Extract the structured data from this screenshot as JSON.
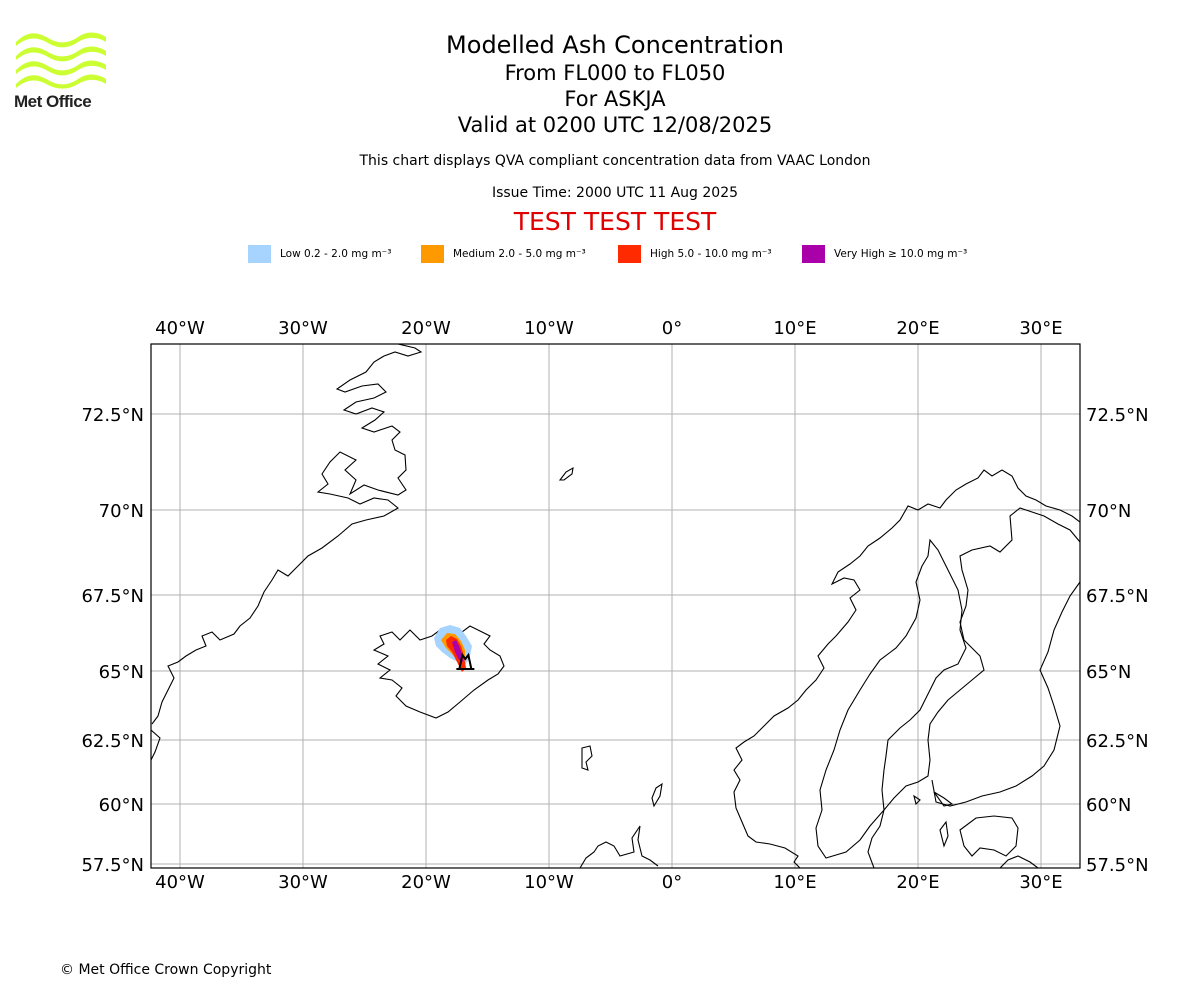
{
  "logo": {
    "text": "Met Office",
    "color": "#ccff33"
  },
  "title": {
    "main": "Modelled Ash Concentration",
    "levels": "From FL000 to FL050",
    "volcano": "For ASKJA",
    "valid": "Valid at 0200 UTC 12/08/2025"
  },
  "subtitle": "This chart displays QVA compliant concentration data from VAAC London",
  "issue_time": "Issue Time: 2000 UTC 11 Aug 2025",
  "test_banner": "TEST TEST TEST",
  "legend": [
    {
      "label": "Low 0.2 - 2.0 mg m⁻³",
      "color": "#a6d4ff"
    },
    {
      "label": "Medium 2.0 - 5.0 mg m⁻³",
      "color": "#ff9900"
    },
    {
      "label": "High 5.0 - 10.0 mg m⁻³",
      "color": "#ff2a00"
    },
    {
      "label": "Very High ≥ 10.0 mg m⁻³",
      "color": "#aa00aa"
    }
  ],
  "map": {
    "lon_range": [
      -42.5,
      33
    ],
    "lat_range": [
      57.4,
      74.5
    ],
    "lon_ticks": [
      {
        "value": -40,
        "label": "40°W"
      },
      {
        "value": -30,
        "label": "30°W"
      },
      {
        "value": -20,
        "label": "20°W"
      },
      {
        "value": -10,
        "label": "10°W"
      },
      {
        "value": 0,
        "label": "0°"
      },
      {
        "value": 10,
        "label": "10°E"
      },
      {
        "value": 20,
        "label": "20°E"
      },
      {
        "value": 30,
        "label": "30°E"
      }
    ],
    "lat_ticks": [
      {
        "value": 72.5,
        "label": "72.5°N"
      },
      {
        "value": 70,
        "label": "70°N"
      },
      {
        "value": 67.5,
        "label": "67.5°N"
      },
      {
        "value": 65,
        "label": "65°N"
      },
      {
        "value": 62.5,
        "label": "62.5°N"
      },
      {
        "value": 60,
        "label": "60°N"
      },
      {
        "value": 57.5,
        "label": "57.5°N"
      }
    ],
    "grid": true,
    "volcano_marker": {
      "name": "ASKJA",
      "lon": -16.8,
      "lat": 65.0
    }
  },
  "copyright": "© Met Office Crown Copyright"
}
